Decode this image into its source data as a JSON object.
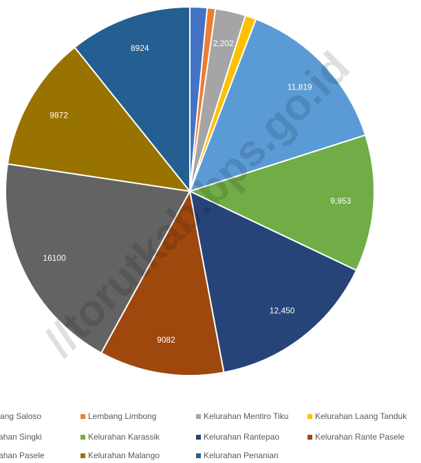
{
  "chart_data": {
    "type": "pie",
    "watermark": "//torutkab.bps.go.id",
    "categories": [
      "Lembang Saloso",
      "Lembang Limbong",
      "Kelurahan Mentiro Tiku",
      "Kelurahan Laang Tanduk",
      "Kelurahan Singki",
      "Kelurahan Karassik",
      "Kelurahan Rantepao",
      "Kelurahan Rante Pasele",
      "Kelurahan Pasele",
      "Kelurahan Malango",
      "Kelurahan Penanian"
    ],
    "values": [
      1250,
      600,
      2202,
      800,
      11819,
      9953,
      12450,
      9082,
      16100,
      9872,
      8924
    ],
    "value_labels": [
      null,
      null,
      "2,202",
      null,
      "11,819",
      "9,953",
      "12,450",
      "9082",
      "16100",
      "9872",
      "8924"
    ],
    "colors": [
      "#4472c4",
      "#ed7d31",
      "#a5a5a5",
      "#ffc000",
      "#5b9bd5",
      "#70ad47",
      "#264478",
      "#9e480e",
      "#636363",
      "#997300",
      "#255e91"
    ],
    "legend": "bottom"
  }
}
